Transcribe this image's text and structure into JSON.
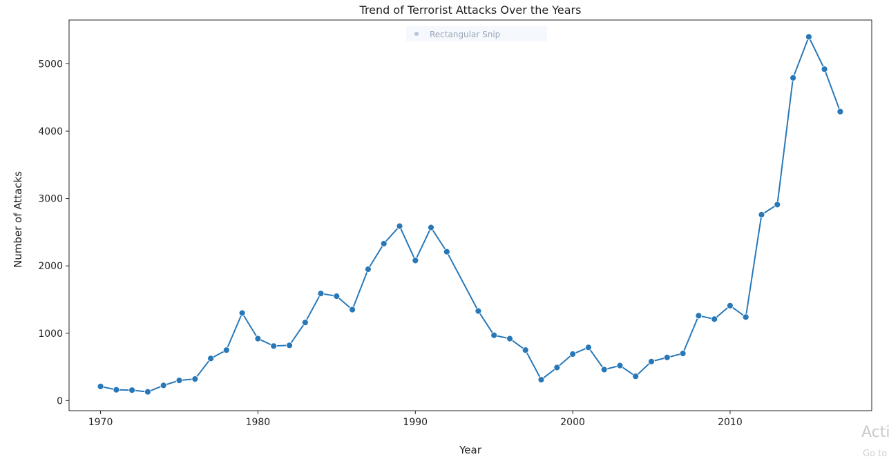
{
  "overlay": {
    "snip_label": "Rectangular Snip",
    "watermark_title": "Acti",
    "watermark_sub": "Go to"
  },
  "colors": {
    "series": "#2878b8",
    "axis": "#222222"
  },
  "chart_data": {
    "type": "line",
    "title": "Trend of Terrorist Attacks Over the Years",
    "xlabel": "Year",
    "ylabel": "Number of Attacks",
    "xlim": [
      1968,
      2019
    ],
    "ylim": [
      -150,
      5650
    ],
    "xticks": [
      1970,
      1980,
      1990,
      2000,
      2010
    ],
    "yticks": [
      0,
      1000,
      2000,
      3000,
      4000,
      5000
    ],
    "grid": false,
    "marker": "circle",
    "series": [
      {
        "x": [
          1970,
          1971,
          1972,
          1973,
          1974,
          1975,
          1976,
          1977,
          1978,
          1979,
          1980,
          1981,
          1982,
          1983,
          1984,
          1985,
          1986,
          1987,
          1988,
          1989,
          1990,
          1991,
          1992,
          1994,
          1995,
          1996,
          1997,
          1998,
          1999,
          2000,
          2001,
          2002,
          2003,
          2004,
          2005,
          2006,
          2007,
          2008,
          2009,
          2010,
          2011,
          2012,
          2013,
          2014,
          2015,
          2016,
          2017
        ],
        "values": [
          210,
          160,
          155,
          130,
          225,
          300,
          320,
          625,
          750,
          1300,
          920,
          810,
          820,
          1160,
          1590,
          1550,
          1350,
          1950,
          2330,
          2590,
          2080,
          2570,
          2210,
          1330,
          970,
          920,
          750,
          310,
          490,
          690,
          790,
          460,
          520,
          360,
          580,
          640,
          700,
          1260,
          1210,
          1410,
          1240,
          2760,
          2910,
          4790,
          5400,
          4920,
          4290
        ]
      }
    ]
  }
}
